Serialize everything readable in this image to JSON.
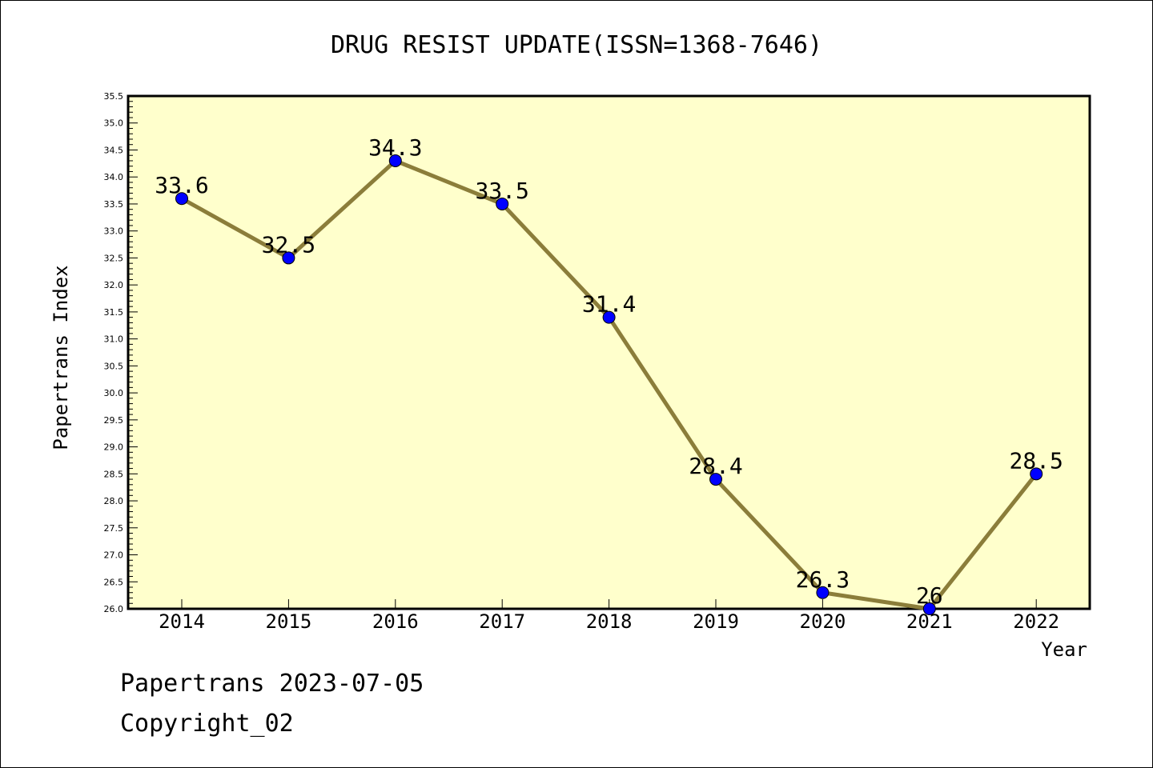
{
  "chart_data": {
    "type": "line",
    "title": "DRUG RESIST UPDATE(ISSN=1368-7646)",
    "xlabel": "Year",
    "ylabel": "Papertrans Index",
    "categories": [
      "2014",
      "2015",
      "2016",
      "2017",
      "2018",
      "2019",
      "2020",
      "2021",
      "2022"
    ],
    "values": [
      33.6,
      32.5,
      34.3,
      33.5,
      31.4,
      28.4,
      26.3,
      26,
      28.5
    ],
    "point_labels": [
      "33.6",
      "32.5",
      "34.3",
      "33.5",
      "31.4",
      "28.4",
      "26.3",
      "26",
      "28.5"
    ],
    "ylim": [
      26.0,
      35.5
    ],
    "yticks": [
      "26.0",
      "26.5",
      "27.0",
      "27.5",
      "28.0",
      "28.5",
      "29.0",
      "29.5",
      "30.0",
      "30.5",
      "31.0",
      "31.5",
      "32.0",
      "32.5",
      "33.0",
      "33.5",
      "34.0",
      "34.5",
      "35.0",
      "35.5"
    ],
    "grid": false,
    "colors": {
      "plot_background": "#ffffcc",
      "line": "#8b7d3a",
      "marker": "#0000ff"
    }
  },
  "footer": {
    "date_line": "Papertrans 2023-07-05",
    "copyright": "Copyright_02"
  }
}
